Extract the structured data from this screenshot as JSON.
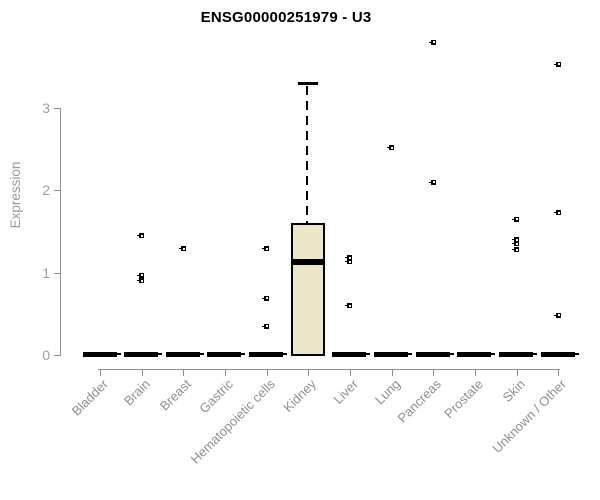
{
  "header": {
    "title": "ENSG00000251979 - U3"
  },
  "colors": {
    "background": "#ffffff",
    "box_fill": "#ede6c8",
    "box_border": "#000000",
    "data_black": "#000000",
    "axis_gray": "#909090",
    "label_gray": "#8f8f8f",
    "ytick_gray": "#9aa0a6"
  },
  "chart_data": {
    "type": "boxplot",
    "title": "ENSG00000251979 - U3",
    "xlabel": "",
    "ylabel": "Expression",
    "ylim": [
      0,
      3.9
    ],
    "yticks": [
      0,
      1,
      2,
      3
    ],
    "grid": false,
    "legend": false,
    "categories": [
      "Bladder",
      "Brain",
      "Breast",
      "Gastric",
      "Hematopoietic cells",
      "Kidney",
      "Liver",
      "Lung",
      "Pancreas",
      "Prostate",
      "Skin",
      "Unknown / Other"
    ],
    "boxes": [
      {
        "category": "Bladder",
        "q1": 0,
        "median": 0,
        "q3": 0,
        "whisker_low": 0,
        "whisker_high": 0,
        "outliers": []
      },
      {
        "category": "Brain",
        "q1": 0,
        "median": 0,
        "q3": 0,
        "whisker_low": 0,
        "whisker_high": 0,
        "outliers": [
          1.45,
          0.97,
          0.9
        ]
      },
      {
        "category": "Breast",
        "q1": 0,
        "median": 0,
        "q3": 0,
        "whisker_low": 0,
        "whisker_high": 0,
        "outliers": [
          1.29
        ]
      },
      {
        "category": "Gastric",
        "q1": 0,
        "median": 0,
        "q3": 0,
        "whisker_low": 0,
        "whisker_high": 0,
        "outliers": []
      },
      {
        "category": "Hematopoietic cells",
        "q1": 0,
        "median": 0,
        "q3": 0,
        "whisker_low": 0,
        "whisker_high": 0,
        "outliers": [
          1.29,
          0.69,
          0.35
        ]
      },
      {
        "category": "Kidney",
        "q1": 0,
        "median": 1.13,
        "q3": 1.59,
        "whisker_low": 0,
        "whisker_high": 3.3,
        "outliers": []
      },
      {
        "category": "Liver",
        "q1": 0,
        "median": 0,
        "q3": 0,
        "whisker_low": 0,
        "whisker_high": 0,
        "outliers": [
          1.18,
          1.13,
          0.6
        ]
      },
      {
        "category": "Lung",
        "q1": 0,
        "median": 0,
        "q3": 0,
        "whisker_low": 0,
        "whisker_high": 0,
        "outliers": [
          2.52
        ]
      },
      {
        "category": "Pancreas",
        "q1": 0,
        "median": 0,
        "q3": 0,
        "whisker_low": 0,
        "whisker_high": 0,
        "outliers": [
          3.8,
          2.1
        ]
      },
      {
        "category": "Prostate",
        "q1": 0,
        "median": 0,
        "q3": 0,
        "whisker_low": 0,
        "whisker_high": 0,
        "outliers": []
      },
      {
        "category": "Skin",
        "q1": 0,
        "median": 0,
        "q3": 0,
        "whisker_low": 0,
        "whisker_high": 0,
        "outliers": [
          1.65,
          1.4,
          1.35,
          1.28
        ]
      },
      {
        "category": "Unknown / Other",
        "q1": 0,
        "median": 0,
        "q3": 0,
        "whisker_low": 0,
        "whisker_high": 0,
        "outliers": [
          3.53,
          1.73,
          0.48
        ]
      }
    ]
  }
}
